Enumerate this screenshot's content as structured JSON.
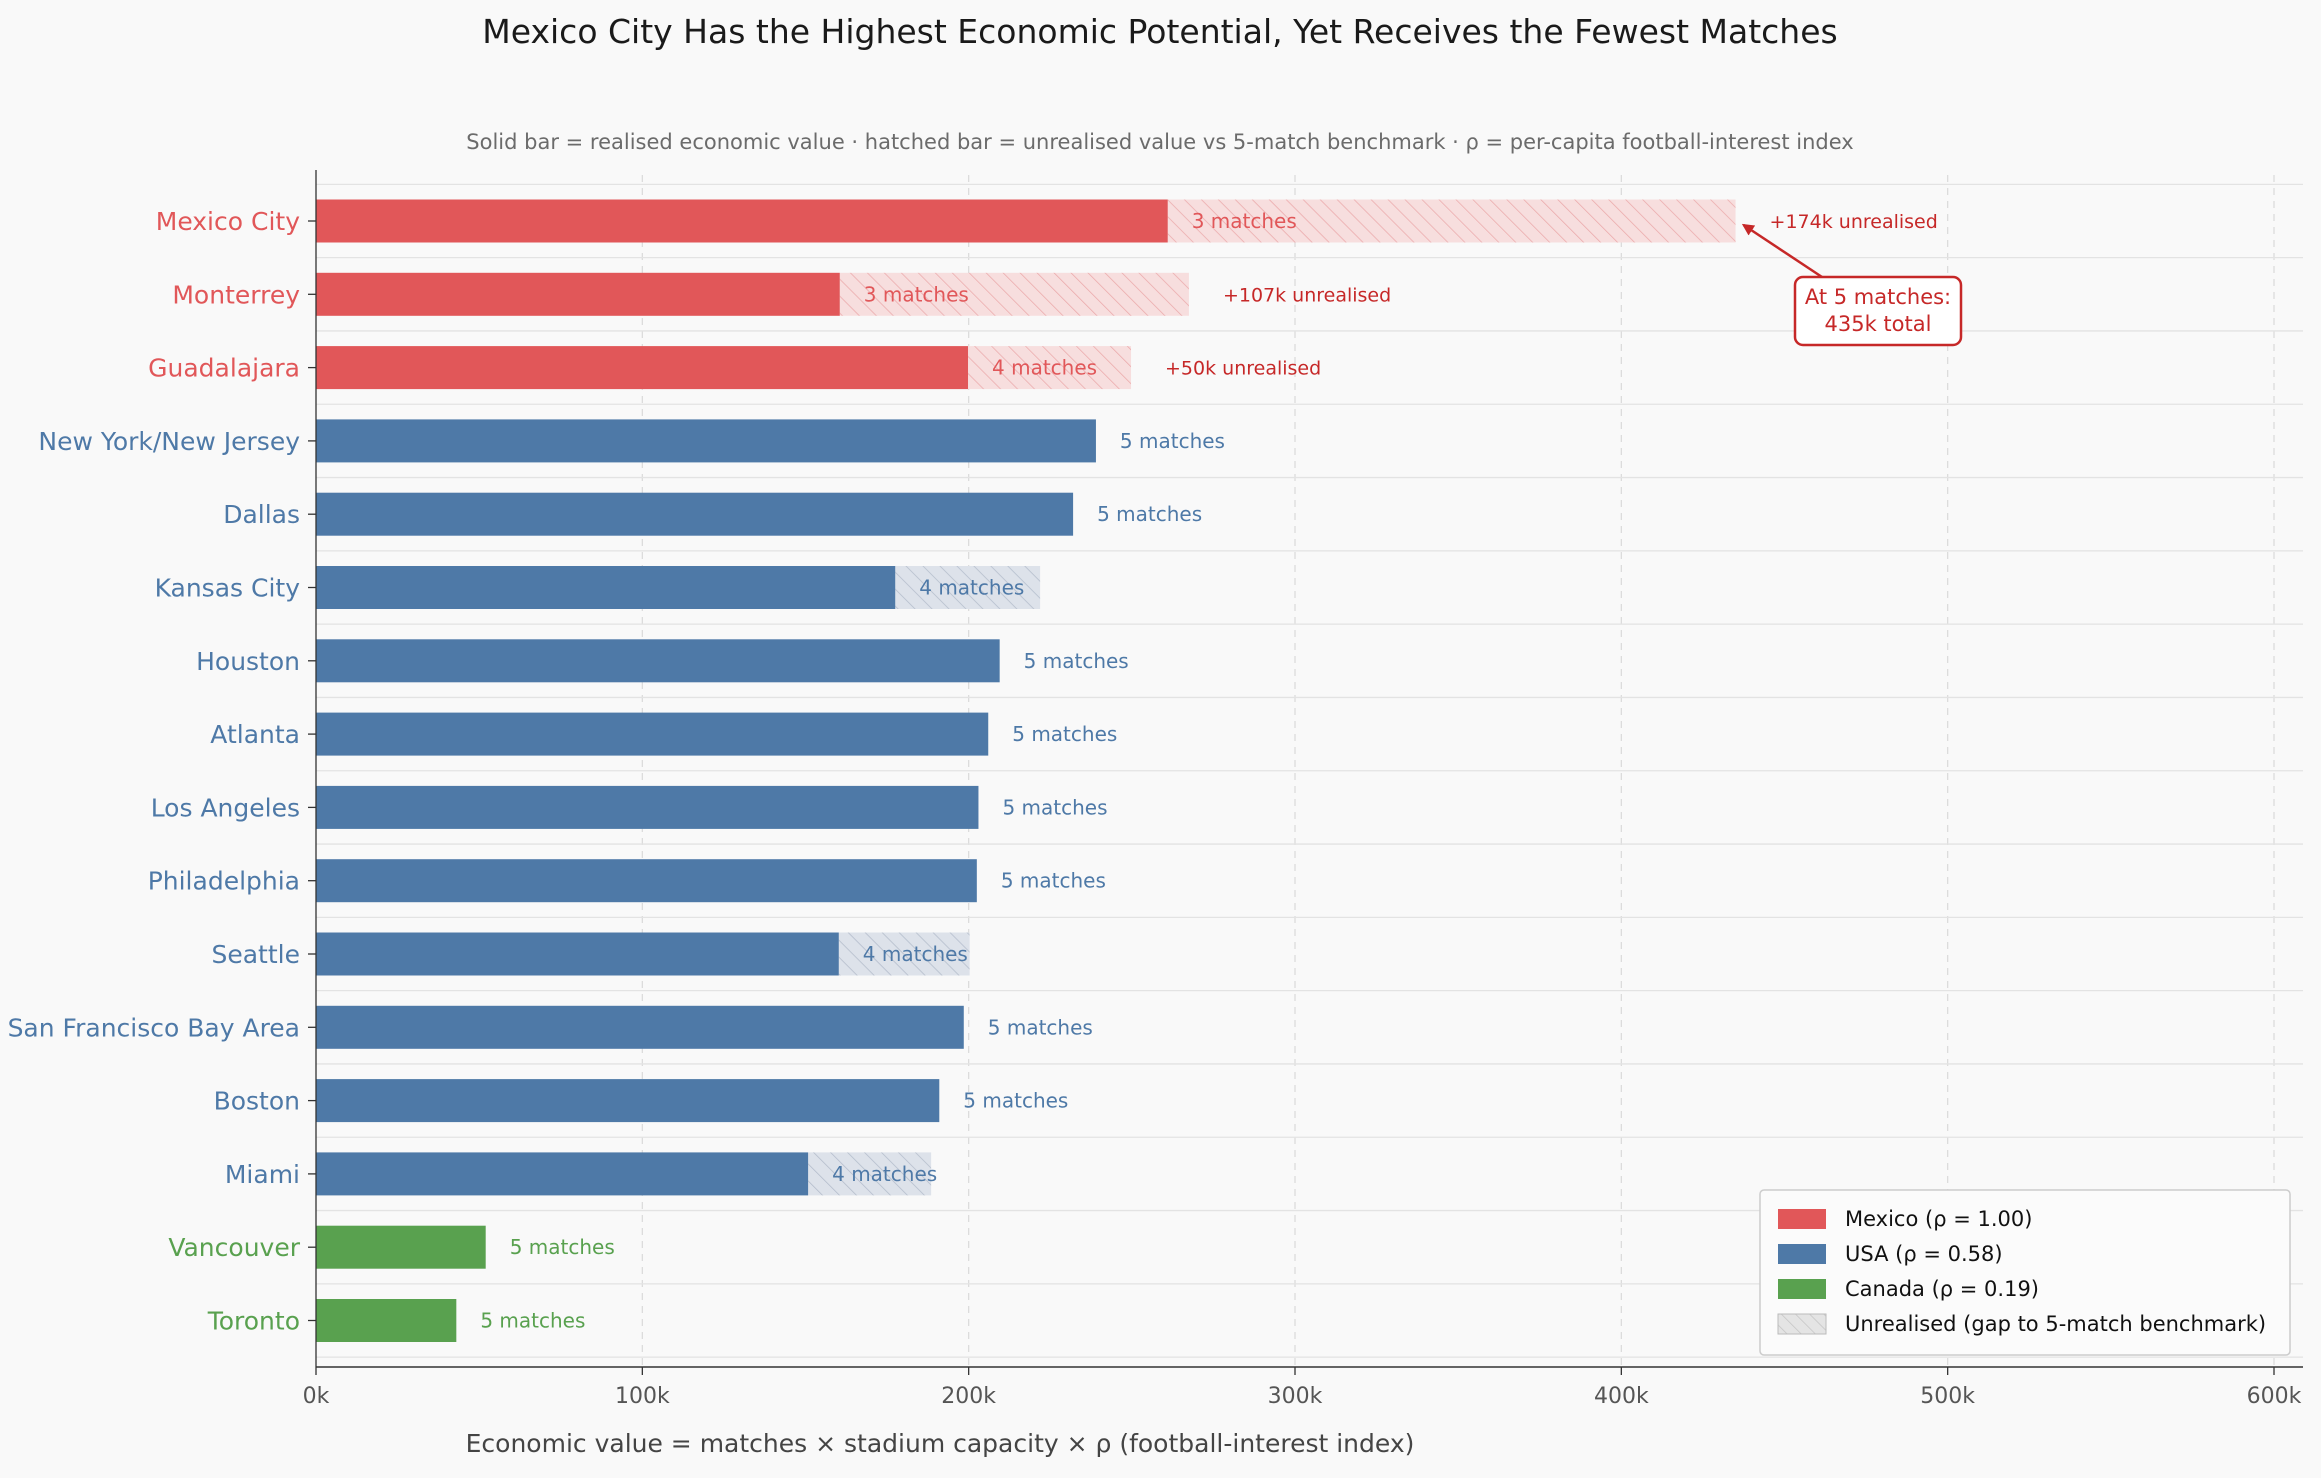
{
  "chart_data": {
    "type": "bar",
    "orientation": "horizontal",
    "title": "Mexico City Has the Highest Economic Potential, Yet Receives the Fewest Matches",
    "subtitle": "Solid bar = realised economic value  ·  hatched bar = unrealised value vs 5-match benchmark  ·  ρ = per-capita football-interest index",
    "xlabel": "Economic value  =  matches × stadium capacity × ρ  (football-interest index)",
    "xlim": [
      0,
      610000
    ],
    "xticks": [
      0,
      100000,
      200000,
      300000,
      400000,
      500000,
      600000
    ],
    "xtick_labels": [
      "0k",
      "100k",
      "200k",
      "300k",
      "400k",
      "500k",
      "600k"
    ],
    "grid": "vertical dashed",
    "legend_position": "bottom-right",
    "colors": {
      "Mexico": "#e15759",
      "USA": "#4e79a7",
      "Canada": "#59a14f",
      "Mexico_hatch_bg": "#f7dede",
      "Other_hatch_bg": "#dde2ea",
      "annotation": "#c62828"
    },
    "categories": [
      "Mexico City",
      "Monterrey",
      "Guadalajara",
      "New York/New Jersey",
      "Dallas",
      "Kansas City",
      "Houston",
      "Atlanta",
      "Los Angeles",
      "Philadelphia",
      "Seattle",
      "San Francisco Bay Area",
      "Boston",
      "Miami",
      "Vancouver",
      "Toronto"
    ],
    "country": [
      "Mexico",
      "Mexico",
      "Mexico",
      "USA",
      "USA",
      "USA",
      "USA",
      "USA",
      "USA",
      "USA",
      "USA",
      "USA",
      "USA",
      "USA",
      "Canada",
      "Canada"
    ],
    "realised": [
      261000,
      160500,
      199800,
      239000,
      232000,
      177500,
      209500,
      206000,
      203000,
      202500,
      160200,
      198500,
      191000,
      150800,
      52000,
      43000
    ],
    "total_at_5_matches": [
      435000,
      267500,
      249750,
      239000,
      232000,
      221900,
      209500,
      206000,
      203000,
      202500,
      200300,
      198500,
      191000,
      188500,
      52000,
      43000
    ],
    "matches_labels": [
      "3 matches",
      "3 matches",
      "4 matches",
      "5 matches",
      "5 matches",
      "4 matches",
      "5 matches",
      "5 matches",
      "5 matches",
      "5 matches",
      "4 matches",
      "5 matches",
      "5 matches",
      "4 matches",
      "5 matches",
      "5 matches"
    ],
    "unrealised_labels": [
      "+174k unrealised",
      "+107k unrealised",
      "+50k unrealised",
      "",
      "",
      "",
      "",
      "",
      "",
      "",
      "",
      "",
      "",
      "",
      "",
      ""
    ],
    "annotation": {
      "lines": [
        "At 5 matches:",
        "435k total"
      ],
      "target_category": "Mexico City",
      "target_value": 435000
    },
    "legend": [
      {
        "label": "Mexico  (ρ = 1.00)",
        "key": "Mexico"
      },
      {
        "label": "USA  (ρ = 0.58)",
        "key": "USA"
      },
      {
        "label": "Canada  (ρ = 0.19)",
        "key": "Canada"
      },
      {
        "label": "Unrealised  (gap to 5-match benchmark)",
        "key": "hatch"
      }
    ]
  }
}
